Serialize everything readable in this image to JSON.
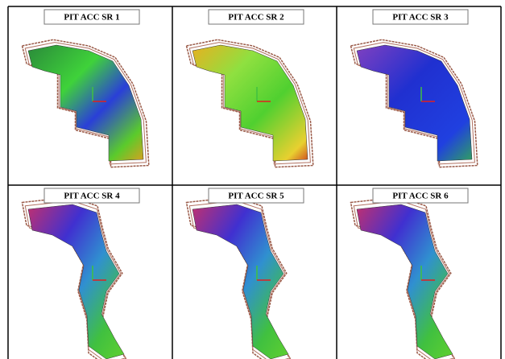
{
  "panels": [
    {
      "title": "PIT ACC SR 1"
    },
    {
      "title": "PIT ACC SR 2"
    },
    {
      "title": "PIT ACC SR 3"
    },
    {
      "title": "PIT ACC SR 4"
    },
    {
      "title": "PIT ACC SR 5"
    },
    {
      "title": "PIT ACC SR 6"
    }
  ]
}
